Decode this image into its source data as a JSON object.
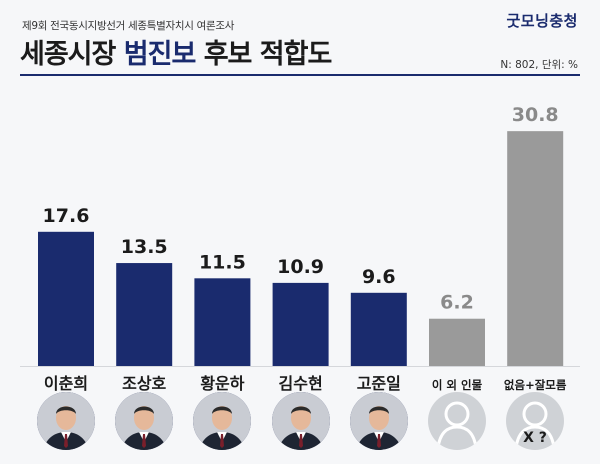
{
  "header": {
    "subtitle": "제9회 전국동시지방선거 세종특별자치시 여론조사",
    "title_main": "세종시장 ",
    "title_highlight": "범진보",
    "title_tail": " 후보 적합도",
    "brand": "굿모닝충청",
    "note": "N: 802, 단위: %"
  },
  "colors": {
    "navy": "#1a2b6e",
    "gray": "#9a9a9a"
  },
  "chart_data": {
    "type": "bar",
    "categories": [
      "이춘희",
      "조상호",
      "황운하",
      "김수현",
      "고준일",
      "이 외 인물",
      "없음+잘모름"
    ],
    "values": [
      17.6,
      13.5,
      11.5,
      10.9,
      9.6,
      6.2,
      30.8
    ],
    "bar_colors": [
      "#1a2b6e",
      "#1a2b6e",
      "#1a2b6e",
      "#1a2b6e",
      "#1a2b6e",
      "#9a9a9a",
      "#9a9a9a"
    ],
    "unit": "%",
    "ylim": [
      0,
      32
    ],
    "grid": false,
    "legend": "none"
  },
  "photos": [
    {
      "name": "이춘희",
      "icon": "person-photo",
      "style": "navy"
    },
    {
      "name": "조상호",
      "icon": "person-photo",
      "style": "navy"
    },
    {
      "name": "황운하",
      "icon": "person-photo",
      "style": "navy"
    },
    {
      "name": "김수현",
      "icon": "person-photo",
      "style": "navy"
    },
    {
      "name": "고준일",
      "icon": "person-photo",
      "style": "navy"
    },
    {
      "name": "이 외 인물",
      "icon": "user-silhouette-icon",
      "style": "gray"
    },
    {
      "name": "없음+잘모름",
      "icon": "unknown-person-icon",
      "style": "gray",
      "mark": "X ?"
    }
  ]
}
